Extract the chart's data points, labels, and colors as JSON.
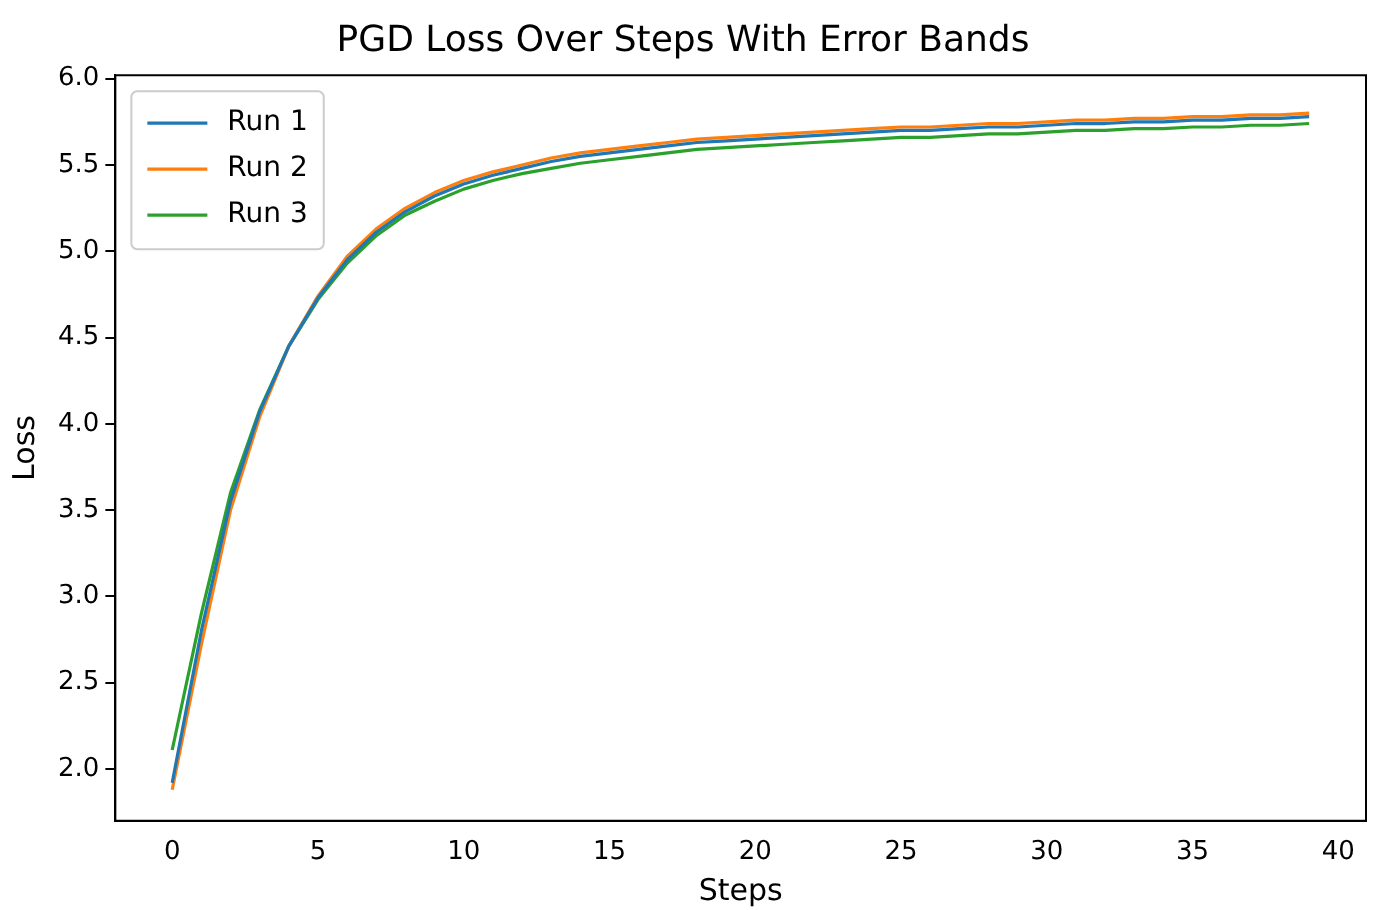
{
  "chart_data": {
    "type": "line",
    "title": "PGD Loss Over Steps With Error Bands",
    "xlabel": "Steps",
    "ylabel": "Loss",
    "x": [
      0,
      1,
      2,
      3,
      4,
      5,
      6,
      7,
      8,
      9,
      10,
      11,
      12,
      13,
      14,
      15,
      16,
      17,
      18,
      19,
      20,
      21,
      22,
      23,
      24,
      25,
      26,
      27,
      28,
      29,
      30,
      31,
      32,
      33,
      34,
      35,
      36,
      37,
      38,
      39
    ],
    "series": [
      {
        "name": "Run 1",
        "color": "#1f77b4",
        "values": [
          1.92,
          2.8,
          3.55,
          4.07,
          4.45,
          4.73,
          4.95,
          5.11,
          5.23,
          5.32,
          5.39,
          5.44,
          5.48,
          5.52,
          5.55,
          5.57,
          5.59,
          5.61,
          5.63,
          5.64,
          5.65,
          5.66,
          5.67,
          5.68,
          5.69,
          5.7,
          5.7,
          5.71,
          5.72,
          5.72,
          5.73,
          5.74,
          5.74,
          5.75,
          5.75,
          5.76,
          5.76,
          5.77,
          5.77,
          5.78
        ]
      },
      {
        "name": "Run 2",
        "color": "#ff7f0e",
        "values": [
          1.88,
          2.72,
          3.5,
          4.04,
          4.45,
          4.74,
          4.97,
          5.13,
          5.25,
          5.34,
          5.41,
          5.46,
          5.5,
          5.54,
          5.57,
          5.59,
          5.61,
          5.63,
          5.65,
          5.66,
          5.67,
          5.68,
          5.69,
          5.7,
          5.71,
          5.72,
          5.72,
          5.73,
          5.74,
          5.74,
          5.75,
          5.76,
          5.76,
          5.77,
          5.77,
          5.78,
          5.78,
          5.79,
          5.79,
          5.8
        ]
      },
      {
        "name": "Run 3",
        "color": "#2ca02c",
        "values": [
          2.11,
          2.9,
          3.6,
          4.08,
          4.45,
          4.72,
          4.93,
          5.09,
          5.21,
          5.29,
          5.36,
          5.41,
          5.45,
          5.48,
          5.51,
          5.53,
          5.55,
          5.57,
          5.59,
          5.6,
          5.61,
          5.62,
          5.63,
          5.64,
          5.65,
          5.66,
          5.66,
          5.67,
          5.68,
          5.68,
          5.69,
          5.7,
          5.7,
          5.71,
          5.71,
          5.72,
          5.72,
          5.73,
          5.73,
          5.74
        ]
      }
    ],
    "xlim": [
      -1.95,
      40.95
    ],
    "xticks": [
      0,
      5,
      10,
      15,
      20,
      25,
      30,
      35,
      40
    ],
    "ylim": [
      1.7,
      6.02
    ],
    "yticks": [
      {
        "value": 2,
        "label": "2.0"
      },
      2.5,
      {
        "value": 3,
        "label": "3.0"
      },
      3.5,
      {
        "value": 4,
        "label": "4.0"
      },
      4.5,
      {
        "value": 5,
        "label": "5.0"
      },
      5.5,
      {
        "value": 6,
        "label": "6.0"
      }
    ],
    "grid": false,
    "legend": "top left"
  }
}
